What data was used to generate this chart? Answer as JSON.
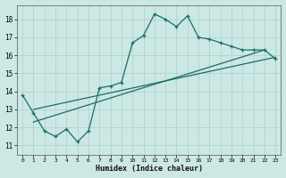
{
  "title": "",
  "xlabel": "Humidex (Indice chaleur)",
  "background_color": "#cce8e4",
  "grid_color": "#aacfcb",
  "line_color": "#1a6e64",
  "xlim": [
    -0.5,
    23.5
  ],
  "ylim": [
    10.5,
    18.8
  ],
  "xticks": [
    0,
    1,
    2,
    3,
    4,
    5,
    6,
    7,
    8,
    9,
    10,
    11,
    12,
    13,
    14,
    15,
    16,
    17,
    18,
    19,
    20,
    21,
    22,
    23
  ],
  "yticks": [
    11,
    12,
    13,
    14,
    15,
    16,
    17,
    18
  ],
  "line1_x": [
    0,
    1,
    2,
    3,
    4,
    5,
    6,
    7,
    8,
    9,
    10,
    11,
    12,
    13,
    14,
    15,
    16,
    17,
    18,
    19,
    20,
    21,
    22,
    23
  ],
  "line1_y": [
    13.8,
    12.8,
    11.8,
    11.5,
    11.9,
    11.2,
    11.8,
    14.2,
    14.3,
    14.5,
    16.7,
    17.1,
    18.3,
    18.0,
    17.6,
    18.2,
    17.0,
    16.9,
    16.7,
    16.5,
    16.3,
    16.3,
    16.3,
    15.8
  ],
  "line2_x": [
    1,
    22
  ],
  "line2_y": [
    12.3,
    16.3
  ],
  "line3_x": [
    1,
    23
  ],
  "line3_y": [
    13.0,
    15.9
  ],
  "figsize": [
    3.2,
    2.0
  ],
  "dpi": 100
}
